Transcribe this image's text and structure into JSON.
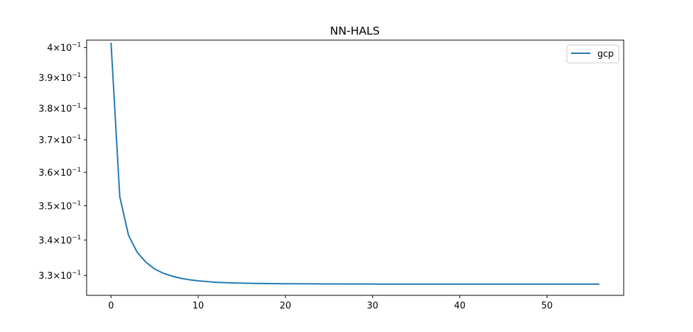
{
  "chart_data": {
    "type": "line",
    "title": "NN-HALS",
    "xlabel": "",
    "ylabel": "",
    "yscale": "log",
    "xlim": [
      -2.8,
      58.8
    ],
    "ylim": [
      0.3245,
      0.4025
    ],
    "grid": false,
    "legend_position": "upper right",
    "x_ticks": [
      0,
      10,
      20,
      30,
      40,
      50
    ],
    "x_tick_labels": [
      "0",
      "10",
      "20",
      "30",
      "40",
      "50"
    ],
    "y_ticks": [
      0.33,
      0.34,
      0.35,
      0.36,
      0.37,
      0.38,
      0.39,
      0.4
    ],
    "y_tick_labels": [
      {
        "mantissa": "3.3",
        "base": "10",
        "exp": "−1"
      },
      {
        "mantissa": "3.4",
        "base": "10",
        "exp": "−1"
      },
      {
        "mantissa": "3.5",
        "base": "10",
        "exp": "−1"
      },
      {
        "mantissa": "3.6",
        "base": "10",
        "exp": "−1"
      },
      {
        "mantissa": "3.7",
        "base": "10",
        "exp": "−1"
      },
      {
        "mantissa": "3.8",
        "base": "10",
        "exp": "−1"
      },
      {
        "mantissa": "3.9",
        "base": "10",
        "exp": "−1"
      },
      {
        "mantissa": "4",
        "base": "10",
        "exp": "−1"
      }
    ],
    "series": [
      {
        "name": "gcp",
        "color": "#1f77b4",
        "x": [
          0,
          1,
          2,
          3,
          4,
          5,
          6,
          7,
          8,
          9,
          10,
          11,
          12,
          13,
          14,
          15,
          16,
          17,
          18,
          19,
          20,
          21,
          22,
          23,
          24,
          25,
          26,
          27,
          28,
          29,
          30,
          31,
          32,
          33,
          34,
          35,
          36,
          37,
          38,
          39,
          40,
          41,
          42,
          43,
          44,
          45,
          46,
          47,
          48,
          49,
          50,
          51,
          52,
          53,
          54,
          55,
          56
        ],
        "y": [
          0.4016,
          0.3527,
          0.3414,
          0.3365,
          0.3337,
          0.3318,
          0.3306,
          0.3298,
          0.3292,
          0.3288,
          0.3285,
          0.3283,
          0.3281,
          0.328,
          0.3279,
          0.32785,
          0.3278,
          0.32777,
          0.32774,
          0.32772,
          0.3277,
          0.32768,
          0.32767,
          0.32766,
          0.32765,
          0.32764,
          0.32763,
          0.32762,
          0.32762,
          0.32761,
          0.32761,
          0.3276,
          0.3276,
          0.3276,
          0.3276,
          0.3276,
          0.3276,
          0.3276,
          0.3276,
          0.3276,
          0.3276,
          0.3276,
          0.3276,
          0.3276,
          0.3276,
          0.3276,
          0.3276,
          0.3276,
          0.3276,
          0.3276,
          0.3276,
          0.3276,
          0.3276,
          0.3276,
          0.3276,
          0.3276,
          0.3276
        ]
      }
    ]
  }
}
